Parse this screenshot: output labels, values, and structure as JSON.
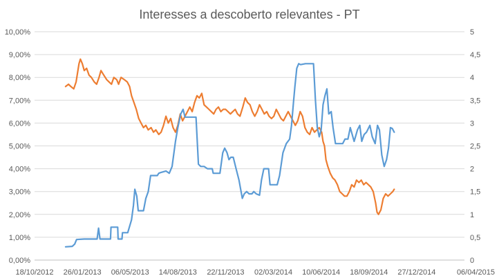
{
  "chart_data": {
    "type": "line",
    "title": "Interesses a descoberto relevantes - PT",
    "xlabel": "",
    "ylabel": "",
    "x_ticks": [
      "18/10/2012",
      "26/01/2013",
      "06/05/2013",
      "14/08/2013",
      "22/11/2013",
      "02/03/2014",
      "10/06/2014",
      "18/09/2014",
      "27/12/2014",
      "06/04/2015"
    ],
    "xlim": [
      "2012-10-18",
      "2015-04-06"
    ],
    "y_left_ticks": [
      "0,00%",
      "1,00%",
      "2,00%",
      "3,00%",
      "4,00%",
      "5,00%",
      "6,00%",
      "7,00%",
      "8,00%",
      "9,00%",
      "10,00%"
    ],
    "ylim_left": [
      0,
      10
    ],
    "y_right_ticks": [
      "0",
      "0,5",
      "1",
      "1,5",
      "2",
      "2,5",
      "3",
      "3,5",
      "4",
      "4,5",
      "5"
    ],
    "ylim_right": [
      0,
      5
    ],
    "grid": true,
    "legend": "none",
    "series": [
      {
        "axis": "left",
        "color": "#ED7D31",
        "points": [
          [
            "2012-12-22",
            7.6
          ],
          [
            "2012-12-28",
            7.7
          ],
          [
            "2013-01-02",
            7.6
          ],
          [
            "2013-01-08",
            7.5
          ],
          [
            "2013-01-13",
            7.8
          ],
          [
            "2013-01-16",
            8.2
          ],
          [
            "2013-01-19",
            8.6
          ],
          [
            "2013-01-22",
            8.8
          ],
          [
            "2013-01-26",
            8.6
          ],
          [
            "2013-01-30",
            8.3
          ],
          [
            "2013-02-04",
            8.4
          ],
          [
            "2013-02-09",
            8.1
          ],
          [
            "2013-02-14",
            8.0
          ],
          [
            "2013-02-20",
            7.8
          ],
          [
            "2013-02-25",
            7.7
          ],
          [
            "2013-03-02",
            8.0
          ],
          [
            "2013-03-06",
            8.3
          ],
          [
            "2013-03-12",
            8.1
          ],
          [
            "2013-03-18",
            7.9
          ],
          [
            "2013-03-23",
            7.8
          ],
          [
            "2013-03-28",
            7.7
          ],
          [
            "2013-04-02",
            8.0
          ],
          [
            "2013-04-08",
            7.9
          ],
          [
            "2013-04-12",
            7.7
          ],
          [
            "2013-04-17",
            8.0
          ],
          [
            "2013-04-24",
            7.9
          ],
          [
            "2013-04-30",
            7.8
          ],
          [
            "2013-05-05",
            7.6
          ],
          [
            "2013-05-09",
            7.2
          ],
          [
            "2013-05-14",
            6.9
          ],
          [
            "2013-05-19",
            6.6
          ],
          [
            "2013-05-24",
            6.2
          ],
          [
            "2013-05-29",
            6.0
          ],
          [
            "2013-06-03",
            5.8
          ],
          [
            "2013-06-08",
            5.9
          ],
          [
            "2013-06-13",
            5.7
          ],
          [
            "2013-06-19",
            5.8
          ],
          [
            "2013-06-24",
            5.6
          ],
          [
            "2013-06-29",
            5.7
          ],
          [
            "2013-07-05",
            5.5
          ],
          [
            "2013-07-10",
            5.6
          ],
          [
            "2013-07-15",
            5.9
          ],
          [
            "2013-07-20",
            6.3
          ],
          [
            "2013-07-25",
            6.0
          ],
          [
            "2013-07-30",
            6.2
          ],
          [
            "2013-08-04",
            5.8
          ],
          [
            "2013-08-09",
            5.6
          ],
          [
            "2013-08-14",
            5.9
          ],
          [
            "2013-08-19",
            6.4
          ],
          [
            "2013-08-24",
            6.1
          ],
          [
            "2013-08-29",
            6.3
          ],
          [
            "2013-09-03",
            6.5
          ],
          [
            "2013-09-08",
            6.7
          ],
          [
            "2013-09-13",
            6.5
          ],
          [
            "2013-09-18",
            6.9
          ],
          [
            "2013-09-23",
            7.2
          ],
          [
            "2013-09-28",
            7.1
          ],
          [
            "2013-10-03",
            7.3
          ],
          [
            "2013-10-08",
            6.8
          ],
          [
            "2013-10-13",
            6.7
          ],
          [
            "2013-10-18",
            6.6
          ],
          [
            "2013-10-23",
            6.5
          ],
          [
            "2013-10-28",
            6.4
          ],
          [
            "2013-11-02",
            6.6
          ],
          [
            "2013-11-07",
            6.7
          ],
          [
            "2013-11-12",
            6.5
          ],
          [
            "2013-11-17",
            6.6
          ],
          [
            "2013-11-22",
            6.6
          ],
          [
            "2013-11-27",
            6.5
          ],
          [
            "2013-12-02",
            6.4
          ],
          [
            "2013-12-07",
            6.5
          ],
          [
            "2013-12-12",
            6.6
          ],
          [
            "2013-12-17",
            6.4
          ],
          [
            "2013-12-22",
            6.3
          ],
          [
            "2013-12-28",
            6.7
          ],
          [
            "2014-01-02",
            7.1
          ],
          [
            "2014-01-07",
            6.9
          ],
          [
            "2014-01-12",
            6.8
          ],
          [
            "2014-01-17",
            6.5
          ],
          [
            "2014-01-22",
            6.3
          ],
          [
            "2014-01-27",
            6.5
          ],
          [
            "2014-02-01",
            6.8
          ],
          [
            "2014-02-06",
            6.6
          ],
          [
            "2014-02-11",
            6.4
          ],
          [
            "2014-02-16",
            6.5
          ],
          [
            "2014-02-21",
            6.3
          ],
          [
            "2014-02-26",
            6.2
          ],
          [
            "2014-03-03",
            6.3
          ],
          [
            "2014-03-08",
            6.6
          ],
          [
            "2014-03-13",
            6.4
          ],
          [
            "2014-03-18",
            6.2
          ],
          [
            "2014-03-23",
            6.1
          ],
          [
            "2014-03-28",
            6.3
          ],
          [
            "2014-04-02",
            6.5
          ],
          [
            "2014-04-07",
            6.3
          ],
          [
            "2014-04-12",
            6.1
          ],
          [
            "2014-04-17",
            5.9
          ],
          [
            "2014-04-22",
            6.1
          ],
          [
            "2014-04-27",
            6.5
          ],
          [
            "2014-05-02",
            6.3
          ],
          [
            "2014-05-07",
            5.8
          ],
          [
            "2014-05-12",
            5.6
          ],
          [
            "2014-05-17",
            5.5
          ],
          [
            "2014-05-22",
            5.8
          ],
          [
            "2014-05-27",
            5.6
          ],
          [
            "2014-06-01",
            5.7
          ],
          [
            "2014-06-06",
            5.8
          ],
          [
            "2014-06-11",
            5.6
          ],
          [
            "2014-06-14",
            5.2
          ],
          [
            "2014-06-17",
            5.0
          ],
          [
            "2014-06-20",
            4.4
          ],
          [
            "2014-06-24",
            4.1
          ],
          [
            "2014-06-29",
            3.8
          ],
          [
            "2014-07-04",
            3.6
          ],
          [
            "2014-07-09",
            3.5
          ],
          [
            "2014-07-14",
            3.3
          ],
          [
            "2014-07-19",
            3.0
          ],
          [
            "2014-07-24",
            2.9
          ],
          [
            "2014-07-29",
            2.8
          ],
          [
            "2014-08-03",
            2.8
          ],
          [
            "2014-08-08",
            3.0
          ],
          [
            "2014-08-13",
            3.3
          ],
          [
            "2014-08-18",
            3.2
          ],
          [
            "2014-08-23",
            3.5
          ],
          [
            "2014-08-28",
            3.4
          ],
          [
            "2014-09-02",
            3.5
          ],
          [
            "2014-09-07",
            3.3
          ],
          [
            "2014-09-12",
            3.4
          ],
          [
            "2014-09-17",
            3.3
          ],
          [
            "2014-09-22",
            3.2
          ],
          [
            "2014-09-27",
            3.0
          ],
          [
            "2014-10-02",
            2.5
          ],
          [
            "2014-10-05",
            2.1
          ],
          [
            "2014-10-08",
            2.0
          ],
          [
            "2014-10-13",
            2.2
          ],
          [
            "2014-10-18",
            2.7
          ],
          [
            "2014-10-23",
            2.9
          ],
          [
            "2014-10-28",
            2.8
          ],
          [
            "2014-11-02",
            2.9
          ],
          [
            "2014-11-07",
            3.0
          ],
          [
            "2014-11-10",
            3.1
          ]
        ]
      },
      {
        "axis": "right",
        "color": "#5B9BD5",
        "points": [
          [
            "2012-12-22",
            0.29
          ],
          [
            "2013-01-05",
            0.3
          ],
          [
            "2013-01-10",
            0.35
          ],
          [
            "2013-01-14",
            0.45
          ],
          [
            "2013-01-30",
            0.46
          ],
          [
            "2013-02-26",
            0.46
          ],
          [
            "2013-03-01",
            0.7
          ],
          [
            "2013-03-04",
            0.46
          ],
          [
            "2013-03-26",
            0.46
          ],
          [
            "2013-03-27",
            0.72
          ],
          [
            "2013-04-10",
            0.72
          ],
          [
            "2013-04-11",
            0.46
          ],
          [
            "2013-04-19",
            0.46
          ],
          [
            "2013-04-20",
            0.6
          ],
          [
            "2013-05-01",
            0.6
          ],
          [
            "2013-05-09",
            0.88
          ],
          [
            "2013-05-13",
            1.2
          ],
          [
            "2013-05-16",
            1.55
          ],
          [
            "2013-05-20",
            1.4
          ],
          [
            "2013-05-23",
            1.08
          ],
          [
            "2013-06-03",
            1.08
          ],
          [
            "2013-06-08",
            1.35
          ],
          [
            "2013-06-13",
            1.5
          ],
          [
            "2013-06-18",
            1.85
          ],
          [
            "2013-07-02",
            1.85
          ],
          [
            "2013-07-05",
            1.9
          ],
          [
            "2013-07-10",
            1.92
          ],
          [
            "2013-07-20",
            1.95
          ],
          [
            "2013-07-27",
            1.9
          ],
          [
            "2013-08-02",
            2.05
          ],
          [
            "2013-08-09",
            2.6
          ],
          [
            "2013-08-14",
            2.9
          ],
          [
            "2013-08-20",
            3.2
          ],
          [
            "2013-08-25",
            3.3
          ],
          [
            "2013-08-29",
            3.13
          ],
          [
            "2013-09-21",
            3.13
          ],
          [
            "2013-09-26",
            2.1
          ],
          [
            "2013-10-01",
            2.05
          ],
          [
            "2013-10-08",
            2.05
          ],
          [
            "2013-10-15",
            2.0
          ],
          [
            "2013-10-25",
            2.0
          ],
          [
            "2013-10-27",
            1.9
          ],
          [
            "2013-11-10",
            1.9
          ],
          [
            "2013-11-16",
            2.35
          ],
          [
            "2013-11-20",
            2.45
          ],
          [
            "2013-11-25",
            2.35
          ],
          [
            "2013-11-29",
            2.2
          ],
          [
            "2013-12-03",
            2.25
          ],
          [
            "2013-12-08",
            2.25
          ],
          [
            "2013-12-14",
            2.0
          ],
          [
            "2013-12-20",
            1.75
          ],
          [
            "2013-12-27",
            1.35
          ],
          [
            "2013-12-31",
            1.45
          ],
          [
            "2014-01-05",
            1.5
          ],
          [
            "2014-01-10",
            1.45
          ],
          [
            "2014-01-16",
            1.45
          ],
          [
            "2014-01-20",
            1.5
          ],
          [
            "2014-01-25",
            1.45
          ],
          [
            "2014-02-01",
            1.42
          ],
          [
            "2014-02-05",
            1.75
          ],
          [
            "2014-02-10",
            2.0
          ],
          [
            "2014-02-20",
            2.0
          ],
          [
            "2014-02-23",
            1.65
          ],
          [
            "2014-03-10",
            1.65
          ],
          [
            "2014-03-15",
            1.85
          ],
          [
            "2014-03-22",
            2.35
          ],
          [
            "2014-03-29",
            2.55
          ],
          [
            "2014-04-05",
            2.65
          ],
          [
            "2014-04-09",
            2.95
          ],
          [
            "2014-04-13",
            3.45
          ],
          [
            "2014-04-16",
            3.8
          ],
          [
            "2014-04-20",
            4.2
          ],
          [
            "2014-04-24",
            4.3
          ],
          [
            "2014-04-28",
            4.28
          ],
          [
            "2014-05-08",
            4.3
          ],
          [
            "2014-05-25",
            4.3
          ],
          [
            "2014-05-29",
            3.5
          ],
          [
            "2014-06-02",
            2.9
          ],
          [
            "2014-06-06",
            2.7
          ],
          [
            "2014-06-10",
            2.85
          ],
          [
            "2014-06-14",
            3.4
          ],
          [
            "2014-06-18",
            3.6
          ],
          [
            "2014-06-22",
            3.75
          ],
          [
            "2014-06-26",
            3.2
          ],
          [
            "2014-07-01",
            3.25
          ],
          [
            "2014-07-05",
            2.9
          ],
          [
            "2014-07-10",
            2.55
          ],
          [
            "2014-07-25",
            2.55
          ],
          [
            "2014-07-30",
            2.65
          ],
          [
            "2014-08-05",
            2.65
          ],
          [
            "2014-08-10",
            2.9
          ],
          [
            "2014-08-18",
            2.6
          ],
          [
            "2014-08-25",
            2.85
          ],
          [
            "2014-08-30",
            2.95
          ],
          [
            "2014-09-03",
            2.6
          ],
          [
            "2014-09-08",
            2.75
          ],
          [
            "2014-09-13",
            2.8
          ],
          [
            "2014-09-20",
            2.95
          ],
          [
            "2014-09-25",
            2.7
          ],
          [
            "2014-10-01",
            2.55
          ],
          [
            "2014-10-06",
            2.95
          ],
          [
            "2014-10-10",
            2.85
          ],
          [
            "2014-10-15",
            2.3
          ],
          [
            "2014-10-20",
            2.05
          ],
          [
            "2014-10-25",
            2.2
          ],
          [
            "2014-10-29",
            2.45
          ],
          [
            "2014-11-02",
            2.9
          ],
          [
            "2014-11-06",
            2.88
          ],
          [
            "2014-11-10",
            2.8
          ]
        ]
      }
    ]
  }
}
